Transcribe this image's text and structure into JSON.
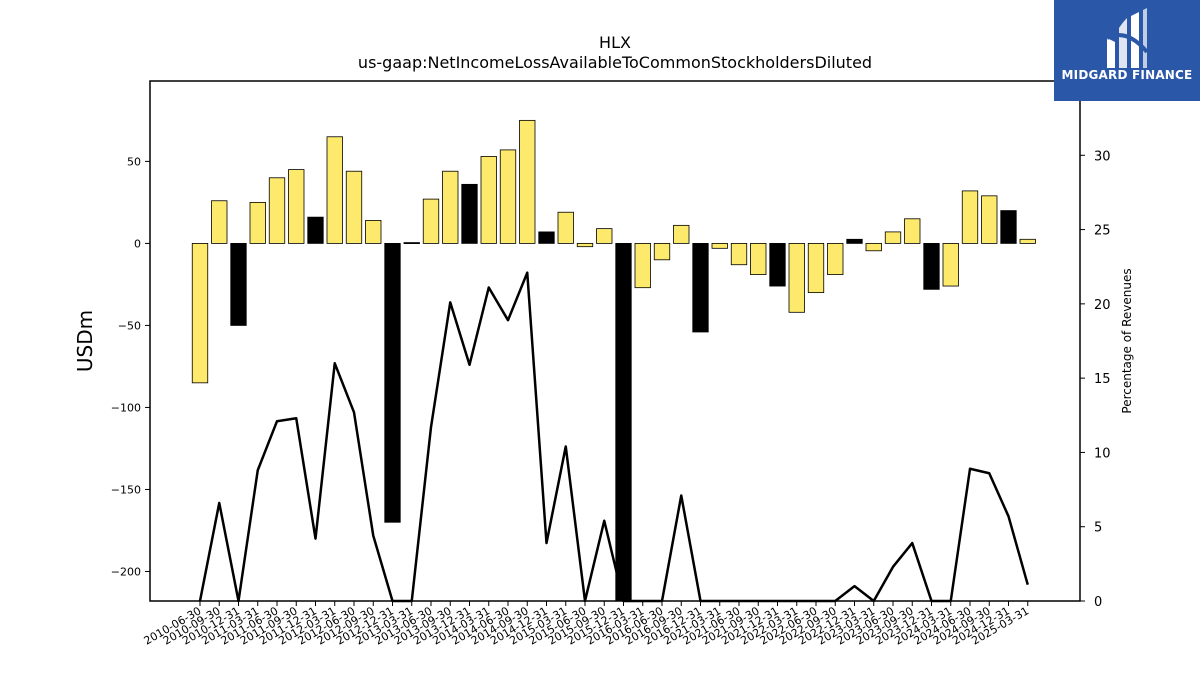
{
  "brand": {
    "name": "MIDGARD FINANCE",
    "logo_icon": "midgard-m-logo-icon",
    "bg_color": "#2b57a8"
  },
  "colors": {
    "positive_bar": "#fde96b",
    "negative_bar": "#000000",
    "line": "#000000"
  },
  "chart_data": {
    "type": "bar",
    "title": "HLX",
    "subtitle": "us-gaap:NetIncomeLossAvailableToCommonStockholdersDiluted",
    "ylabel": "USDm",
    "y2label": "Percentage of Revenues",
    "ylim": [
      -218,
      99
    ],
    "y2lim": [
      0,
      35
    ],
    "yticks": [
      50,
      0,
      -50,
      -100,
      -150,
      -200
    ],
    "y2ticks": [
      30,
      25,
      20,
      15,
      10,
      5,
      0
    ],
    "categories": [
      "2010-06-30",
      "2010-09-30",
      "2010-12-31",
      "2011-03-31",
      "2011-06-30",
      "2011-09-30",
      "2011-12-31",
      "2012-03-31",
      "2012-06-30",
      "2012-09-30",
      "2012-12-31",
      "2013-03-31",
      "2013-06-30",
      "2013-09-30",
      "2013-12-31",
      "2014-03-31",
      "2014-06-30",
      "2014-09-30",
      "2014-12-31",
      "2015-03-31",
      "2015-06-30",
      "2015-09-30",
      "2015-12-31",
      "2016-03-31",
      "2016-06-30",
      "2016-09-30",
      "2016-12-31",
      "2021-03-31",
      "2021-06-30",
      "2021-09-30",
      "2021-12-31",
      "2022-03-31",
      "2022-06-30",
      "2022-09-30",
      "2022-12-31",
      "2023-03-31",
      "2023-06-30",
      "2023-09-30",
      "2023-12-31",
      "2024-03-31",
      "2024-06-30",
      "2024-09-30",
      "2024-12-31",
      "2025-03-31"
    ],
    "series": [
      {
        "kind": "bar",
        "axis": "left",
        "values": [
          -85,
          26,
          -50,
          25,
          40,
          45,
          16,
          65,
          44,
          14,
          -170,
          0.5,
          27,
          44,
          36,
          53,
          57,
          75,
          7,
          19,
          -2,
          9,
          -218,
          -27,
          -10,
          11,
          -54,
          -3,
          -13,
          -19,
          -26,
          -42,
          -30,
          -19,
          2.5,
          -4.5,
          7,
          15,
          -28,
          -26,
          32,
          29,
          20,
          2.5
        ],
        "highlight": [
          false,
          false,
          true,
          false,
          false,
          false,
          true,
          false,
          false,
          false,
          true,
          true,
          false,
          false,
          true,
          false,
          false,
          false,
          true,
          false,
          false,
          false,
          true,
          false,
          false,
          false,
          true,
          false,
          false,
          false,
          true,
          false,
          false,
          false,
          true,
          false,
          false,
          false,
          true,
          false,
          false,
          false,
          true,
          false
        ]
      },
      {
        "kind": "line",
        "axis": "right",
        "values": [
          null,
          6.6,
          null,
          8.8,
          12.1,
          12.3,
          4.2,
          16.0,
          12.7,
          4.4,
          null,
          null,
          11.7,
          20.1,
          15.9,
          21.1,
          18.9,
          22.1,
          3.9,
          10.4,
          null,
          5.4,
          null,
          null,
          null,
          7.1,
          null,
          null,
          null,
          null,
          null,
          null,
          null,
          null,
          1.0,
          null,
          2.3,
          3.9,
          null,
          null,
          8.9,
          8.6,
          5.7,
          1.1
        ]
      }
    ]
  }
}
